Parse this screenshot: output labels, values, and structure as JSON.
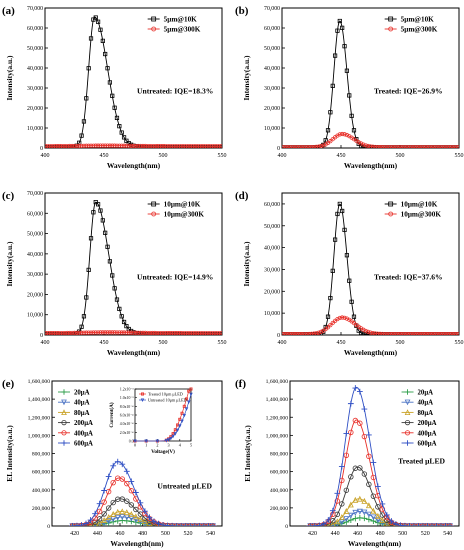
{
  "chart_data": [
    {
      "type": "line",
      "panel_label": "(a)",
      "xlabel": "Wavelength(nm)",
      "ylabel": "Intensity(a.u.)",
      "xlim": [
        400,
        550
      ],
      "ylim": [
        0,
        70000
      ],
      "xticks": [
        400,
        450,
        500,
        550
      ],
      "yticks": [
        0,
        10000,
        20000,
        30000,
        40000,
        50000,
        60000,
        70000
      ],
      "ytick_labels": [
        "0",
        "10,000",
        "20,000",
        "30,000",
        "40,000",
        "50,000",
        "60,000",
        "70,000"
      ],
      "annotation": "Untreated: IQE=18.3%",
      "legend_position": "top-right",
      "series": [
        {
          "name": "5μm@10K",
          "color": "#000000",
          "marker": "square",
          "peak_x": 442,
          "peak_y": 65500,
          "wl": 5,
          "wr": 11,
          "base": 400
        },
        {
          "name": "5μm@300K",
          "color": "#e8302a",
          "marker": "circle",
          "peak_x": 450,
          "peak_y": 1200,
          "wl": 18,
          "wr": 22,
          "base": 900
        }
      ]
    },
    {
      "type": "line",
      "panel_label": "(b)",
      "xlabel": "Wavelength(nm)",
      "ylabel": "Intensity(a.u.)",
      "xlim": [
        400,
        550
      ],
      "ylim": [
        0,
        70000
      ],
      "xticks": [
        400,
        450,
        500,
        550
      ],
      "yticks": [
        0,
        10000,
        20000,
        30000,
        40000,
        50000,
        60000,
        70000
      ],
      "ytick_labels": [
        "0",
        "10,000",
        "20,000",
        "30,000",
        "40,000",
        "50,000",
        "60,000",
        "70,000"
      ],
      "annotation": "Treated: IQE=26.9%",
      "legend_position": "top-right",
      "series": [
        {
          "name": "5μm@10K",
          "color": "#000000",
          "marker": "square",
          "peak_x": 449,
          "peak_y": 63500,
          "wl": 5,
          "wr": 6,
          "base": 300
        },
        {
          "name": "5μm@300K",
          "color": "#e8302a",
          "marker": "circle",
          "peak_x": 451,
          "peak_y": 7000,
          "wl": 8,
          "wr": 10,
          "base": 400
        }
      ]
    },
    {
      "type": "line",
      "panel_label": "(c)",
      "xlabel": "Wavelength(nm)",
      "ylabel": "Intensity(a.u.)",
      "xlim": [
        400,
        550
      ],
      "ylim": [
        0,
        70000
      ],
      "xticks": [
        400,
        450,
        500,
        550
      ],
      "yticks": [
        0,
        10000,
        20000,
        30000,
        40000,
        50000,
        60000,
        70000
      ],
      "ytick_labels": [
        "0",
        "10,000",
        "20,000",
        "30,000",
        "40,000",
        "50,000",
        "60,000",
        "70,000"
      ],
      "annotation": "Untreated: IQE=14.9%",
      "legend_position": "top-right",
      "series": [
        {
          "name": "10μm@10K",
          "color": "#000000",
          "marker": "square",
          "peak_x": 443,
          "peak_y": 65500,
          "wl": 5,
          "wr": 11,
          "base": 400
        },
        {
          "name": "10μm@300K",
          "color": "#e8302a",
          "marker": "circle",
          "peak_x": 452,
          "peak_y": 1300,
          "wl": 18,
          "wr": 22,
          "base": 900
        }
      ]
    },
    {
      "type": "line",
      "panel_label": "(d)",
      "xlabel": "Wavelength(nm)",
      "ylabel": "Intensity(a.u.)",
      "xlim": [
        400,
        550
      ],
      "ylim": [
        0,
        65000
      ],
      "xticks": [
        400,
        450,
        500,
        550
      ],
      "yticks": [
        0,
        10000,
        20000,
        30000,
        40000,
        50000,
        60000
      ],
      "ytick_labels": [
        "0",
        "10,000",
        "20,000",
        "30,000",
        "40,000",
        "50,000",
        "60,000"
      ],
      "annotation": "Treated: IQE=37.6%",
      "legend_position": "top-right",
      "series": [
        {
          "name": "10μm@10K",
          "color": "#000000",
          "marker": "square",
          "peak_x": 449,
          "peak_y": 60000,
          "wl": 5,
          "wr": 6,
          "base": 300
        },
        {
          "name": "10μm@300K",
          "color": "#e8302a",
          "marker": "circle",
          "peak_x": 451,
          "peak_y": 8000,
          "wl": 9,
          "wr": 11,
          "base": 400
        }
      ]
    },
    {
      "type": "line",
      "panel_label": "(e)",
      "xlabel": "Wavelength(nm)",
      "ylabel": "EL Intensity(a.u.)",
      "xlim": [
        400,
        550
      ],
      "ylim": [
        0,
        1600000
      ],
      "xticks": [
        420,
        440,
        460,
        480,
        500,
        520,
        540
      ],
      "yticks": [
        0,
        200000,
        400000,
        600000,
        800000,
        1000000,
        1200000,
        1400000,
        1600000
      ],
      "ytick_labels": [
        "0",
        "200,000",
        "400,000",
        "600,000",
        "800,000",
        "1,000,000",
        "1,200,000",
        "1,400,000",
        "1,600,000"
      ],
      "annotation": "Untreated μLED",
      "legend_position": "top-left",
      "series": [
        {
          "name": "20μA",
          "color": "#2e9e4a",
          "marker": "plus",
          "peak_x": 462,
          "peak_y": 60000,
          "wl": 11,
          "wr": 14,
          "base": 0
        },
        {
          "name": "40μA",
          "color": "#4a72c4",
          "marker": "triangle-down",
          "peak_x": 462,
          "peak_y": 100000,
          "wl": 11,
          "wr": 14,
          "base": 0
        },
        {
          "name": "80μA",
          "color": "#c9a227",
          "marker": "triangle-up",
          "peak_x": 461,
          "peak_y": 160000,
          "wl": 11,
          "wr": 14,
          "base": 0
        },
        {
          "name": "200μA",
          "color": "#3a3a3a",
          "marker": "circle",
          "peak_x": 460,
          "peak_y": 300000,
          "wl": 11,
          "wr": 14,
          "base": 0
        },
        {
          "name": "400μA",
          "color": "#e8302a",
          "marker": "circle",
          "peak_x": 459,
          "peak_y": 530000,
          "wl": 11,
          "wr": 14,
          "base": 0
        },
        {
          "name": "600μA",
          "color": "#2f4fc4",
          "marker": "plus",
          "peak_x": 458,
          "peak_y": 710000,
          "wl": 11,
          "wr": 14,
          "base": 0
        }
      ],
      "inset": {
        "xlabel": "Voltage(V)",
        "ylabel": "Current(A)",
        "xlim": [
          0,
          5
        ],
        "ylim": [
          0,
          0.0012
        ],
        "xticks": [
          0,
          1,
          2,
          3,
          4,
          5
        ],
        "yticks": [
          0,
          0.0002,
          0.0004,
          0.0006,
          0.0008,
          0.001,
          0.0012
        ],
        "ytick_labels": [
          "0.0",
          "2.0x10⁻⁴",
          "4.0x10⁻⁴",
          "6.0x10⁻⁴",
          "8.0x10⁻⁴",
          "1.0x10⁻³",
          "1.2x10⁻³"
        ],
        "series": [
          {
            "name": "Treated 10μm μLED",
            "color": "#e8302a",
            "marker": "square",
            "x": [
              0,
              0.5,
              1,
              1.5,
              2,
              2.5,
              2.8,
              3,
              3.2,
              3.4,
              3.6,
              3.8,
              4,
              4.2,
              4.4,
              4.6,
              4.8,
              5
            ],
            "y": [
              0,
              0,
              0,
              0,
              0,
              5e-06,
              2e-05,
              5e-05,
              0.0001,
              0.00017,
              0.00026,
              0.00037,
              0.0005,
              0.00064,
              0.0008,
              0.00097,
              0.00115,
              0.0012
            ]
          },
          {
            "name": "Untreated 10μm μLED",
            "color": "#2f4fc4",
            "marker": "triangle-down",
            "x": [
              0,
              0.5,
              1,
              1.5,
              2,
              2.5,
              2.8,
              3,
              3.2,
              3.4,
              3.6,
              3.8,
              4,
              4.2,
              4.4,
              4.6,
              4.8,
              5
            ],
            "y": [
              0,
              0,
              0,
              0,
              0,
              2e-06,
              1e-05,
              3e-05,
              6e-05,
              0.00011,
              0.00017,
              0.00025,
              0.00035,
              0.00046,
              0.00059,
              0.00074,
              0.0009,
              0.00108
            ]
          }
        ]
      }
    },
    {
      "type": "line",
      "panel_label": "(f)",
      "xlabel": "Wavelength(nm)",
      "ylabel": "EL Intensity(a.u.)",
      "xlim": [
        400,
        550
      ],
      "ylim": [
        0,
        1600000
      ],
      "xticks": [
        420,
        440,
        460,
        480,
        500,
        520,
        540
      ],
      "yticks": [
        0,
        200000,
        400000,
        600000,
        800000,
        1000000,
        1200000,
        1400000,
        1600000
      ],
      "ytick_labels": [
        "0",
        "200,000",
        "400,000",
        "600,000",
        "800,000",
        "1,000,000",
        "1,200,000",
        "1,400,000",
        "1,600,000"
      ],
      "annotation": "Treated μLED",
      "legend_position": "top-right",
      "series": [
        {
          "name": "20μA",
          "color": "#2e9e4a",
          "marker": "plus",
          "peak_x": 462,
          "peak_y": 90000,
          "wl": 10,
          "wr": 12,
          "base": 0
        },
        {
          "name": "40μA",
          "color": "#4a72c4",
          "marker": "triangle-down",
          "peak_x": 462,
          "peak_y": 160000,
          "wl": 10,
          "wr": 12,
          "base": 0
        },
        {
          "name": "80μA",
          "color": "#c9a227",
          "marker": "triangle-up",
          "peak_x": 461,
          "peak_y": 300000,
          "wl": 10,
          "wr": 12,
          "base": 0
        },
        {
          "name": "200μA",
          "color": "#3a3a3a",
          "marker": "circle",
          "peak_x": 460,
          "peak_y": 650000,
          "wl": 10,
          "wr": 12,
          "base": 0
        },
        {
          "name": "400μA",
          "color": "#e8302a",
          "marker": "circle",
          "peak_x": 459,
          "peak_y": 1170000,
          "wl": 10,
          "wr": 12,
          "base": 0
        },
        {
          "name": "600μA",
          "color": "#2f4fc4",
          "marker": "plus",
          "peak_x": 459,
          "peak_y": 1530000,
          "wl": 10,
          "wr": 12,
          "base": 0
        }
      ]
    }
  ]
}
